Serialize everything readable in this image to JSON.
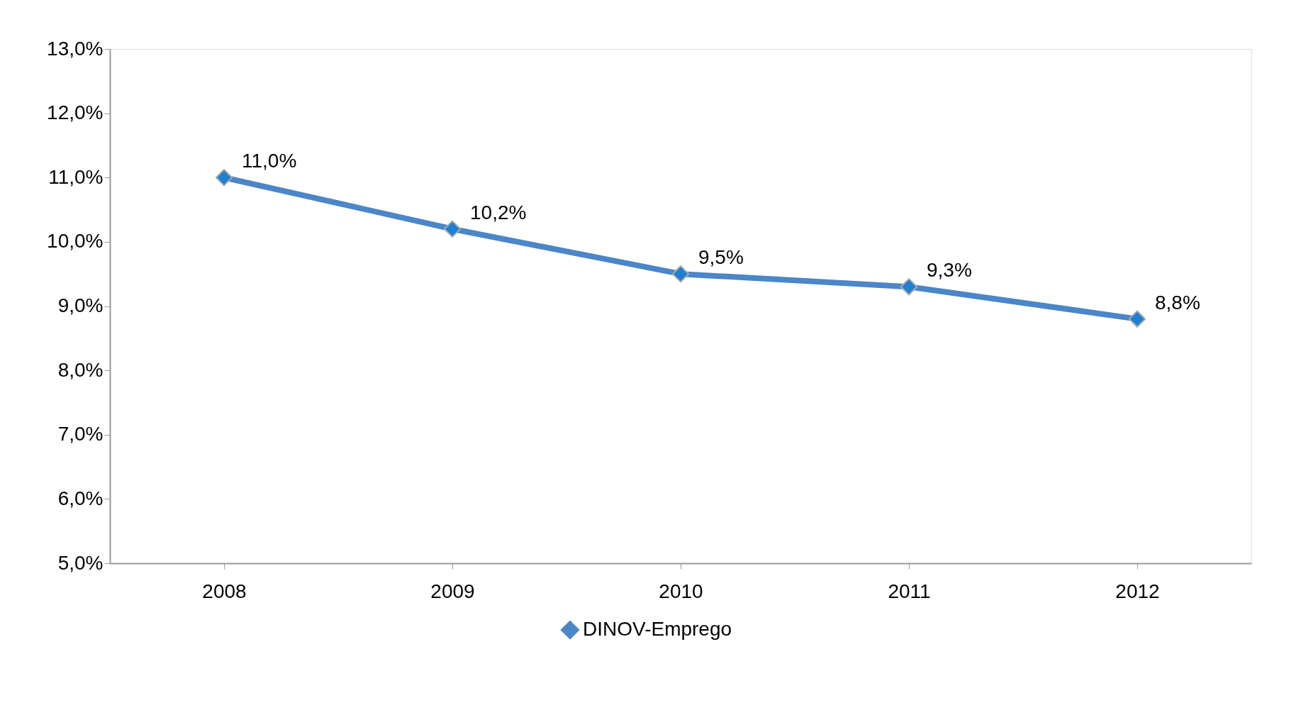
{
  "chart_data": {
    "type": "line",
    "categories": [
      "2008",
      "2009",
      "2010",
      "2011",
      "2012"
    ],
    "series": [
      {
        "name": "DINOV-Emprego",
        "color": "#4a86c8",
        "values": [
          11.0,
          10.2,
          9.5,
          9.3,
          8.8
        ],
        "value_labels": [
          "11,0%",
          "10,2%",
          "9,5%",
          "9,3%",
          "8,8%"
        ]
      }
    ],
    "ylim": [
      5,
      13
    ],
    "yticks": [
      {
        "value": 5,
        "label": "5,0%"
      },
      {
        "value": 6,
        "label": "6,0%"
      },
      {
        "value": 7,
        "label": "7,0%"
      },
      {
        "value": 8,
        "label": "8,0%"
      },
      {
        "value": 9,
        "label": "9,0%"
      },
      {
        "value": 10,
        "label": "10,0%"
      },
      {
        "value": 11,
        "label": "11,0%"
      },
      {
        "value": 12,
        "label": "12,0%"
      },
      {
        "value": 13,
        "label": "13,0%"
      }
    ],
    "marker": "diamond",
    "line_style": "solid",
    "legend": "bottom",
    "grid": false
  }
}
